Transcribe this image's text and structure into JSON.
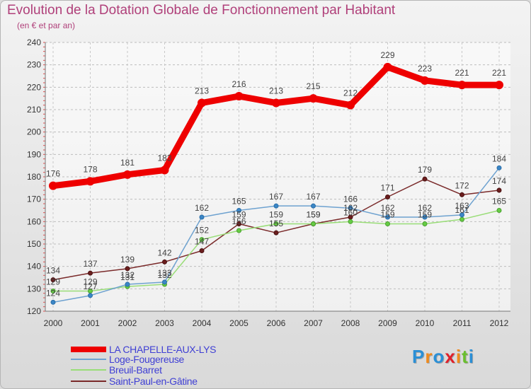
{
  "header": {
    "title": "Evolution de la Dotation Globale de Fonctionnement par Habitant",
    "subtitle": "(en € et par an)"
  },
  "logo": {
    "text": "Proxiti",
    "letters": [
      "P",
      "r",
      "o",
      "x",
      "i",
      "t",
      "i"
    ],
    "colors": [
      "#2a8fd6",
      "#f08a1c",
      "#2a8fd6",
      "#e0202a",
      "#f08a1c",
      "#6abf2e",
      "#2a8fd6"
    ]
  },
  "chart_data": {
    "type": "line",
    "title": "Evolution de la Dotation Globale de Fonctionnement par Habitant",
    "subtitle": "(en € et par an)",
    "xlabel": "",
    "ylabel": "",
    "x": [
      "2000",
      "2001",
      "2002",
      "2003",
      "2004",
      "2005",
      "2006",
      "2007",
      "2008",
      "2009",
      "2010",
      "2011",
      "2012"
    ],
    "ylim": [
      120,
      240
    ],
    "yticks": [
      "120",
      "130",
      "140",
      "150",
      "160",
      "170",
      "180",
      "190",
      "200",
      "210",
      "220",
      "230",
      "240"
    ],
    "grid": true,
    "legend_position": "bottom-left",
    "series": [
      {
        "name": "LA CHAPELLE-AUX-LYS",
        "color": "#ee0000",
        "values": [
          176,
          178,
          181,
          183,
          213,
          216,
          213,
          215,
          212,
          229,
          223,
          221,
          221
        ],
        "labels": [
          "176",
          "178",
          "181",
          "183",
          "213",
          "216",
          "213",
          "215",
          "212",
          "229",
          "223",
          "221",
          "221"
        ]
      },
      {
        "name": "Loge-Fougereuse",
        "color": "#6ea2d0",
        "values": [
          124,
          127,
          132,
          133,
          162,
          165,
          167,
          167,
          166,
          162,
          162,
          163,
          184
        ],
        "labels": [
          "124",
          "127",
          "132",
          "133",
          "162",
          "165",
          "167",
          "167",
          "166",
          "162",
          "162",
          "163",
          "184"
        ]
      },
      {
        "name": "Breuil-Barret",
        "color": "#99dd77",
        "values": [
          129,
          129,
          131,
          132,
          152,
          156,
          159,
          159,
          160,
          159,
          159,
          161,
          165
        ],
        "labels": [
          "129",
          "129",
          "131",
          "132",
          "152",
          "156",
          "159",
          "159",
          "160",
          "159",
          "159",
          "161",
          "165"
        ]
      },
      {
        "name": "Saint-Paul-en-Gâtine",
        "color": "#7a2a2a",
        "values": [
          134,
          137,
          139,
          142,
          147,
          159,
          155,
          159,
          162,
          171,
          179,
          172,
          174
        ],
        "labels": [
          "134",
          "137",
          "139",
          "142",
          "147",
          "159",
          "155",
          "159",
          "162",
          "171",
          "179",
          "172",
          "174"
        ]
      }
    ]
  }
}
